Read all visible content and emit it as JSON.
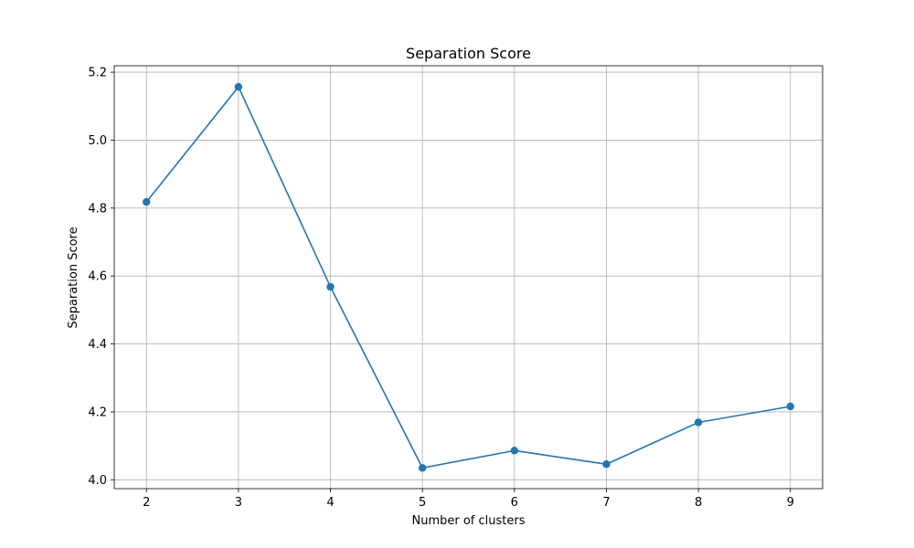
{
  "chart_data": {
    "type": "line",
    "title": "Separation Score",
    "xlabel": "Number of clusters",
    "ylabel": "Separation Score",
    "x": [
      2,
      3,
      4,
      5,
      6,
      7,
      8,
      9
    ],
    "series": [
      {
        "values": [
          4.818,
          5.157,
          4.568,
          4.035,
          4.086,
          4.046,
          4.169,
          4.216
        ]
      }
    ],
    "xlim": [
      1.65,
      9.35
    ],
    "ylim": [
      3.974,
      5.219
    ],
    "xticks": [
      2,
      3,
      4,
      5,
      6,
      7,
      8,
      9
    ],
    "yticks": [
      4.0,
      4.2,
      4.4,
      4.6,
      4.8,
      5.0,
      5.2
    ],
    "ytick_labels": [
      "4.0",
      "4.2",
      "4.4",
      "4.6",
      "4.8",
      "5.0",
      "5.2"
    ],
    "grid": true,
    "line_color": "#1f77b4",
    "grid_color": "#b0b0b0",
    "marker": "circle"
  }
}
